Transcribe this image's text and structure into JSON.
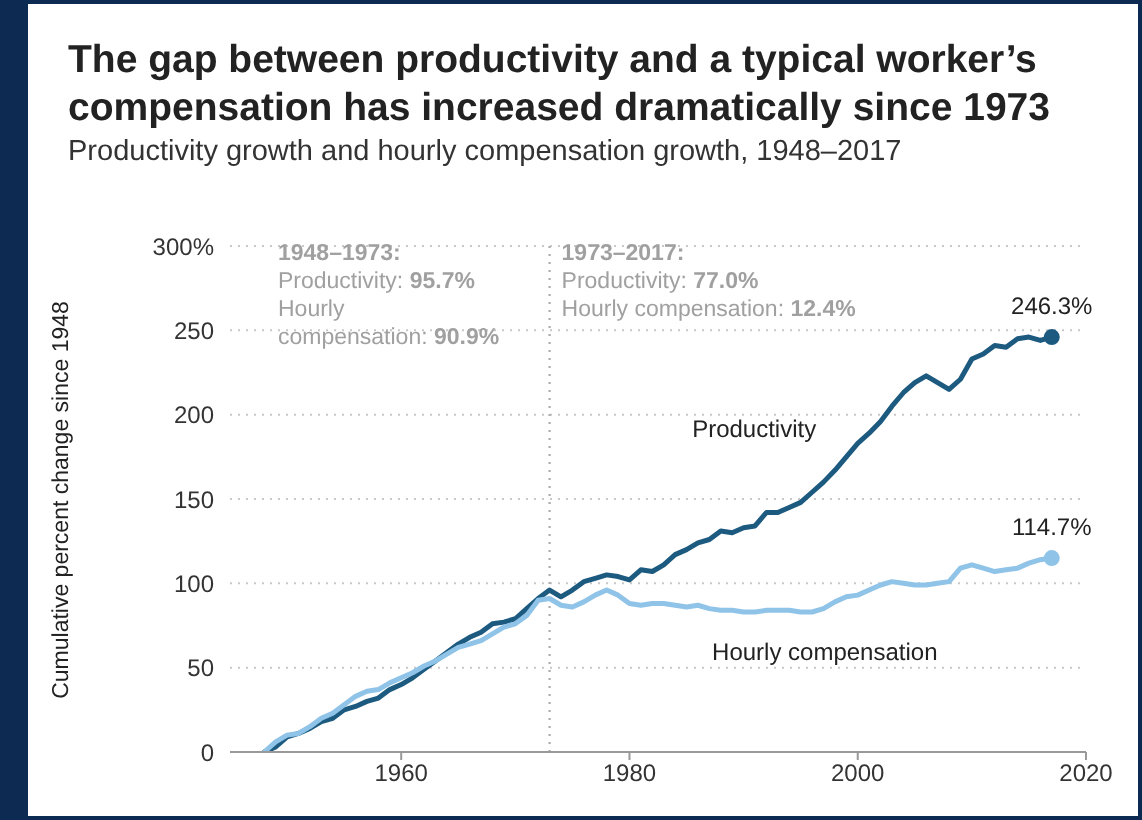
{
  "chart_data": {
    "type": "line",
    "title": "The gap between productivity and a typical worker’s compensation has increased dramatically since 1973",
    "subtitle": "Productivity growth and hourly compensation growth, 1948–2017",
    "ylabel": "Cumulative percent change since 1948",
    "x": [
      1948,
      1949,
      1950,
      1951,
      1952,
      1953,
      1954,
      1955,
      1956,
      1957,
      1958,
      1959,
      1960,
      1961,
      1962,
      1963,
      1964,
      1965,
      1966,
      1967,
      1968,
      1969,
      1970,
      1971,
      1972,
      1973,
      1974,
      1975,
      1976,
      1977,
      1978,
      1979,
      1980,
      1981,
      1982,
      1983,
      1984,
      1985,
      1986,
      1987,
      1988,
      1989,
      1990,
      1991,
      1992,
      1993,
      1994,
      1995,
      1996,
      1997,
      1998,
      1999,
      2000,
      2001,
      2002,
      2003,
      2004,
      2005,
      2006,
      2007,
      2008,
      2009,
      2010,
      2011,
      2012,
      2013,
      2014,
      2015,
      2016,
      2017
    ],
    "series": [
      {
        "name": "Productivity",
        "color": "#1d5a80",
        "values": [
          0,
          3,
          9,
          11,
          14,
          18,
          20,
          25,
          27,
          30,
          32,
          37,
          40,
          44,
          49,
          54,
          59,
          64,
          68,
          71,
          76,
          77,
          79,
          85,
          91,
          96,
          92,
          96,
          101,
          103,
          105,
          104,
          102,
          108,
          107,
          111,
          117,
          120,
          124,
          126,
          131,
          130,
          133,
          134,
          142,
          142,
          145,
          148,
          154,
          160,
          167,
          175,
          183,
          189,
          196,
          205,
          213,
          219,
          223,
          219,
          215,
          221,
          233,
          236,
          241,
          240,
          245,
          246,
          244,
          246
        ]
      },
      {
        "name": "Hourly compensation",
        "color": "#8fc3e8",
        "values": [
          0,
          6,
          10,
          11,
          15,
          20,
          23,
          28,
          33,
          36,
          37,
          41,
          44,
          47,
          51,
          54,
          58,
          62,
          64,
          66,
          70,
          74,
          76,
          81,
          90,
          91,
          87,
          86,
          89,
          93,
          96,
          93,
          88,
          87,
          88,
          88,
          87,
          86,
          87,
          85,
          84,
          84,
          83,
          83,
          84,
          84,
          84,
          83,
          83,
          85,
          89,
          92,
          93,
          96,
          99,
          101,
          100,
          99,
          99,
          100,
          101,
          109,
          111,
          109,
          107,
          108,
          109,
          112,
          114,
          115
        ]
      }
    ],
    "xlim": [
      1945,
      2020
    ],
    "xticks": [
      1960,
      1980,
      2000,
      2020
    ],
    "ylim": [
      0,
      300
    ],
    "yticks": [
      0,
      50,
      100,
      150,
      200,
      250,
      {
        "value": 300,
        "label": "300%"
      }
    ],
    "grid": "y",
    "line_style": "solid",
    "ref_lines": [
      {
        "axis": "x",
        "value": 1973,
        "label": null,
        "color": "#b0b0b0",
        "line_style": "dotted"
      }
    ],
    "annotations": [
      "1948–1973:",
      "Productivity: 95.7%",
      "Hourly compensation: 90.9%",
      "1973–2017:",
      "Productivity: 77.0%",
      "Hourly compensation: 12.4%",
      {
        "text": "246.3%",
        "x": 2017,
        "y": 246
      },
      {
        "text": "114.7%",
        "x": 2017,
        "y": 115
      }
    ]
  }
}
